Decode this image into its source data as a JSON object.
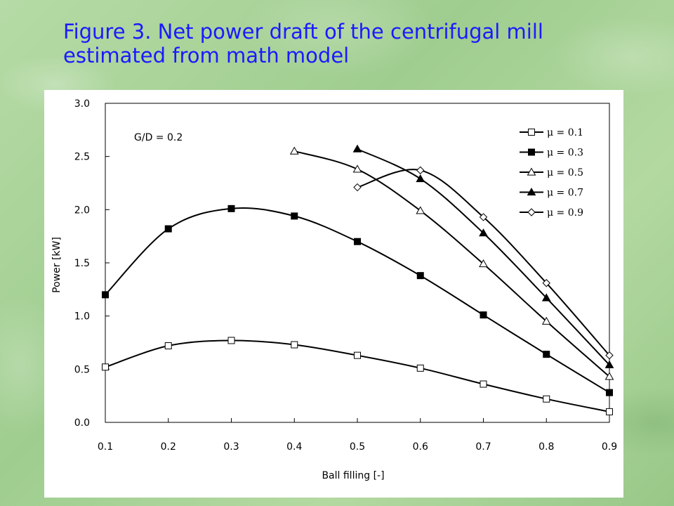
{
  "slide": {
    "title_line1": "Figure 3. Net power draft of the centrifugal mill",
    "title_line2": "estimated from math model"
  },
  "colors": {
    "title": "#1a1aff",
    "background": "#a9d39a",
    "series": "#000000"
  },
  "chart_data": {
    "type": "line",
    "title": "",
    "annotation": "G/D = 0.2",
    "xlabel": "Ball filling [-]",
    "ylabel": "Power [kW]",
    "xlim": [
      0.1,
      0.9
    ],
    "ylim": [
      0.0,
      3.0
    ],
    "xticks": [
      "0.1",
      "0.2",
      "0.3",
      "0.4",
      "0.5",
      "0.6",
      "0.7",
      "0.8",
      "0.9"
    ],
    "yticks": [
      "0.0",
      "0.5",
      "1.0",
      "1.5",
      "2.0",
      "2.5",
      "3.0"
    ],
    "grid": false,
    "legend_position": "top-right",
    "series": [
      {
        "name": "μ = 0.1",
        "marker": "open-square",
        "x": [
          0.1,
          0.2,
          0.3,
          0.4,
          0.5,
          0.6,
          0.7,
          0.8,
          0.9
        ],
        "y": [
          0.52,
          0.72,
          0.77,
          0.73,
          0.63,
          0.51,
          0.36,
          0.22,
          0.1
        ]
      },
      {
        "name": "μ = 0.3",
        "marker": "filled-square",
        "x": [
          0.1,
          0.2,
          0.3,
          0.4,
          0.5,
          0.6,
          0.7,
          0.8,
          0.9
        ],
        "y": [
          1.2,
          1.82,
          2.01,
          1.94,
          1.7,
          1.38,
          1.01,
          0.64,
          0.28
        ]
      },
      {
        "name": "μ = 0.5",
        "marker": "open-triangle",
        "x": [
          0.4,
          0.5,
          0.6,
          0.7,
          0.8,
          0.9
        ],
        "y": [
          2.55,
          2.38,
          1.99,
          1.49,
          0.95,
          0.43
        ]
      },
      {
        "name": "μ = 0.7",
        "marker": "filled-triangle",
        "x": [
          0.5,
          0.6,
          0.7,
          0.8,
          0.9
        ],
        "y": [
          2.57,
          2.29,
          1.78,
          1.17,
          0.54
        ]
      },
      {
        "name": "μ = 0.9",
        "marker": "open-diamond",
        "x": [
          0.5,
          0.6,
          0.7,
          0.8,
          0.9
        ],
        "y": [
          2.21,
          2.37,
          1.93,
          1.31,
          0.63
        ]
      }
    ]
  }
}
